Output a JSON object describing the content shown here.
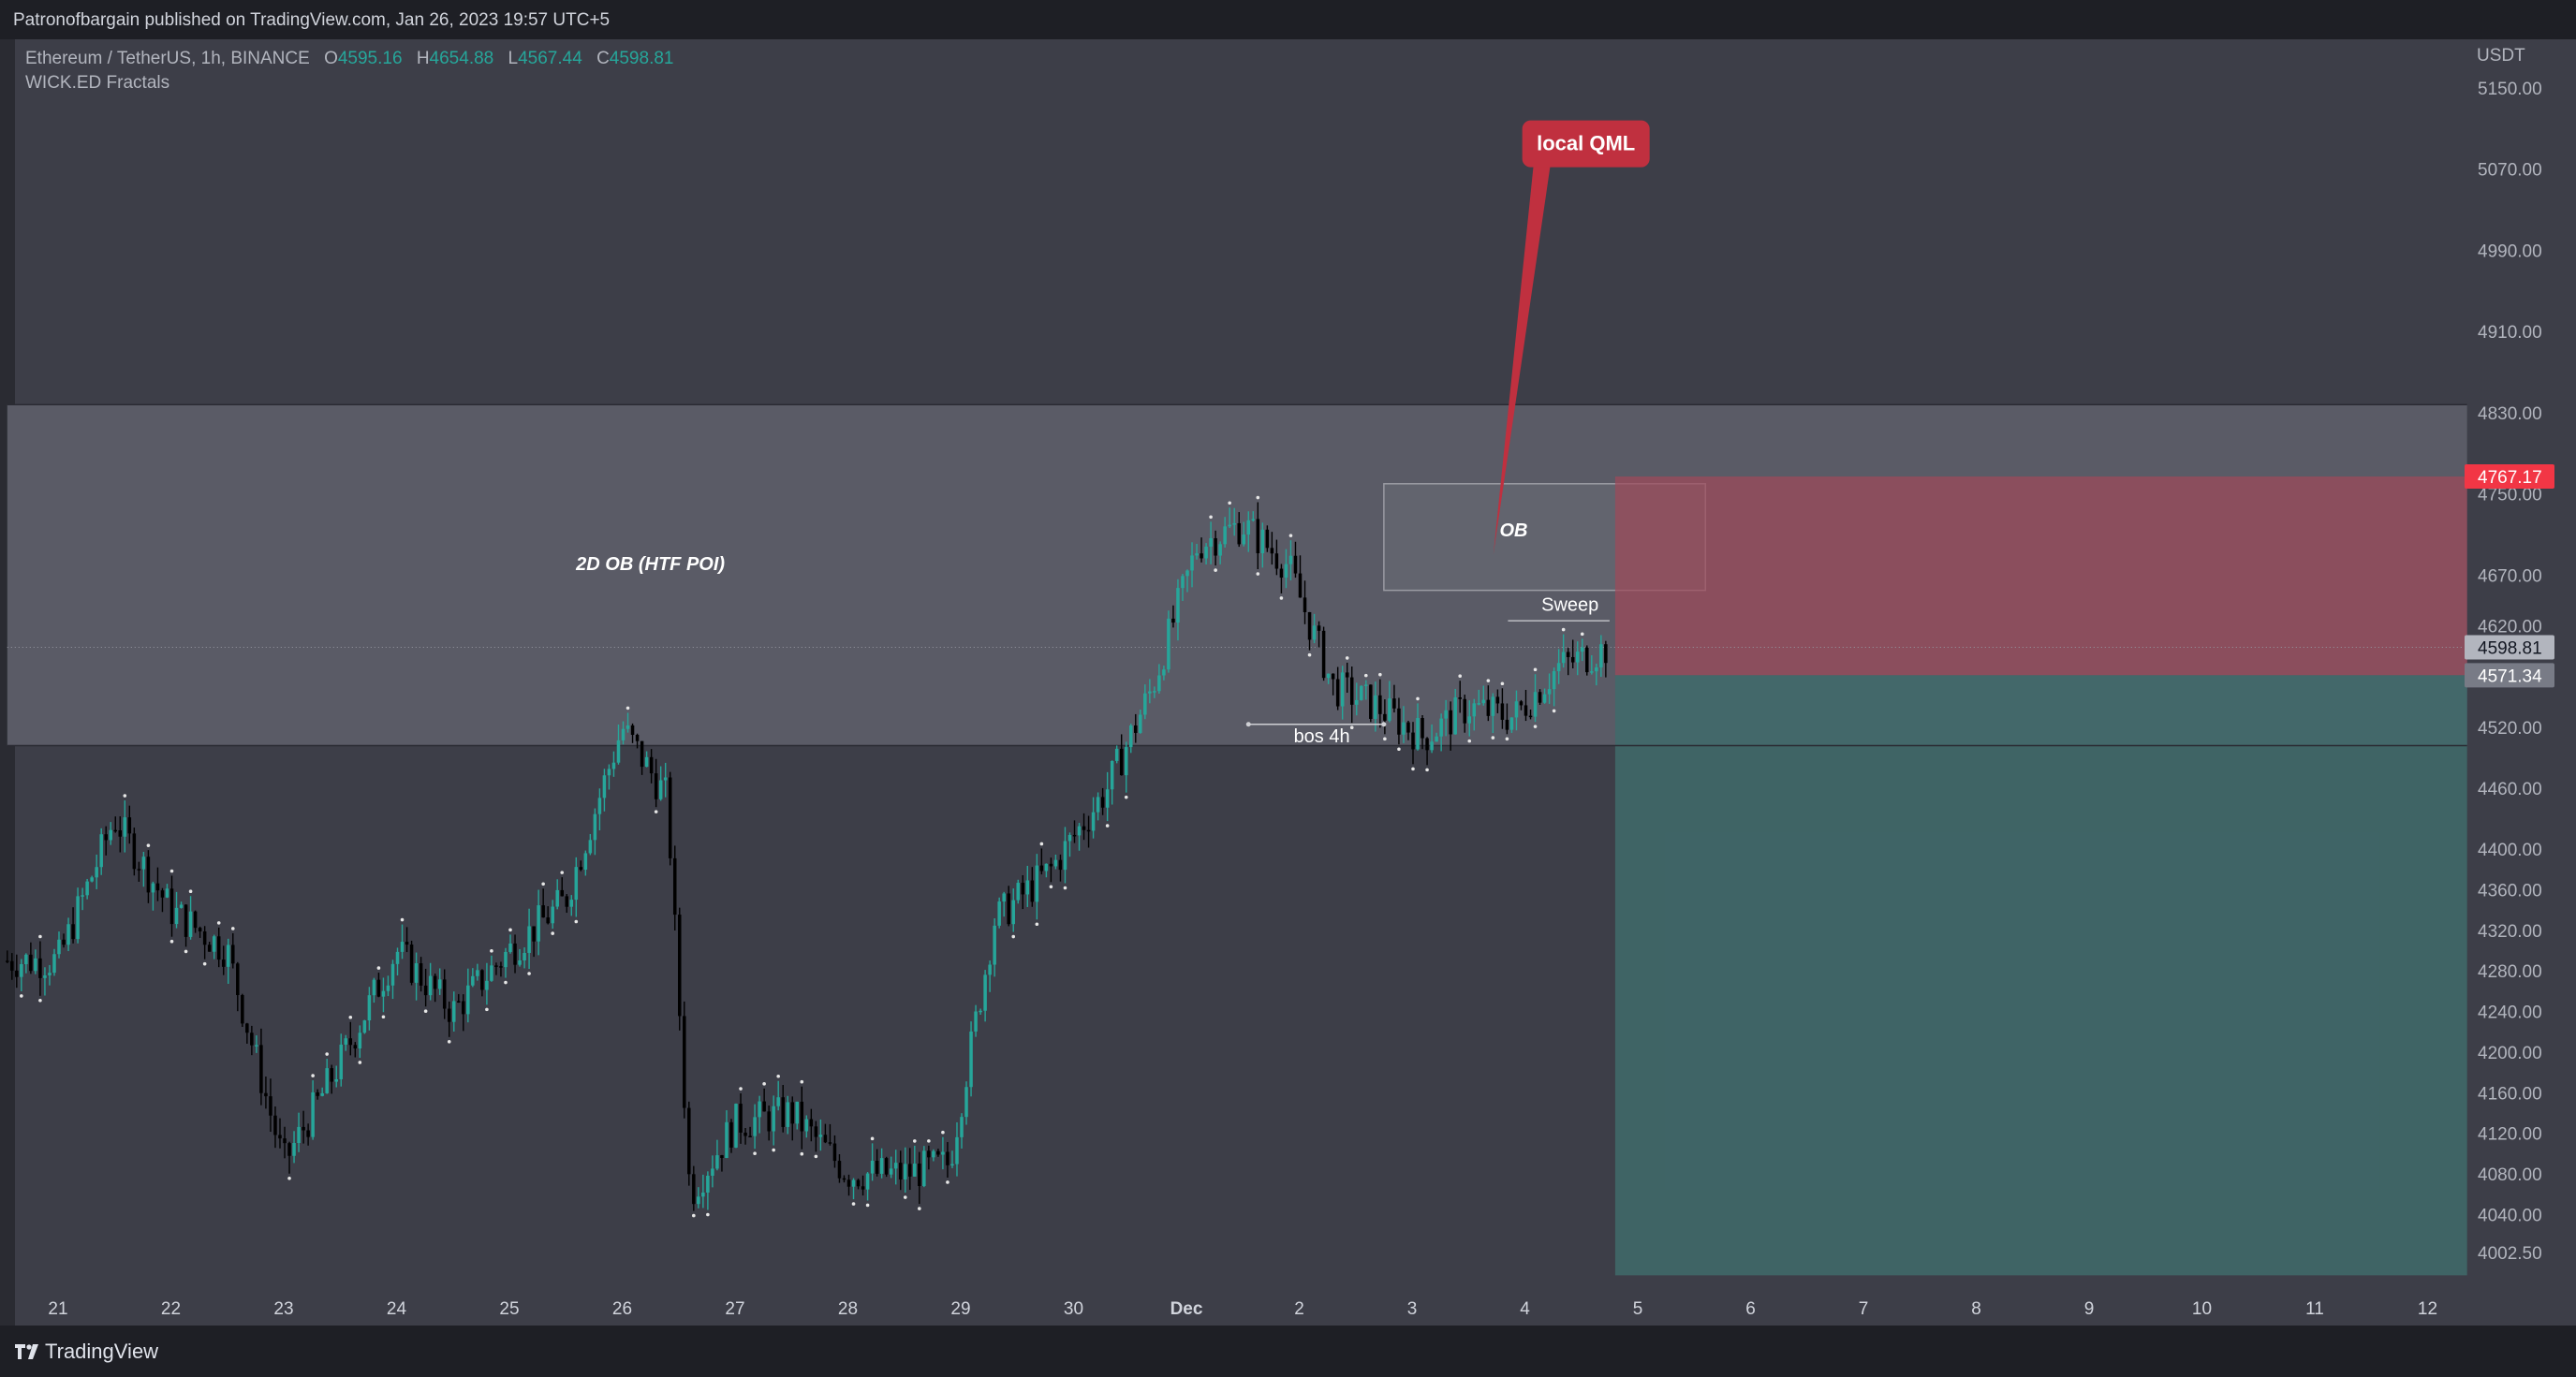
{
  "publisher": "Patronofbargain published on TradingView.com, Jan 26, 2023 19:57 UTC+5",
  "brand": "TradingView",
  "symbol": {
    "name": "Ethereum / TetherUS, 1h, BINANCE",
    "open_label": "O",
    "open": "4595.16",
    "high_label": "H",
    "high": "4654.88",
    "low_label": "L",
    "low": "4567.44",
    "close_label": "C",
    "close": "4598.81"
  },
  "indicator": "WICK.ED Fractals",
  "colors": {
    "up": "#26a69a",
    "down": "#000000",
    "background": "#3d3e48",
    "stop_zone": "#9e4a5a",
    "target_zone": "#3f6b6b",
    "label_red": "#c0303f"
  },
  "chart_data": {
    "type": "candlestick",
    "currency": "USDT",
    "y_ticks": [
      "5150.00",
      "5070.00",
      "4990.00",
      "4910.00",
      "4830.00",
      "4750.00",
      "4670.00",
      "4620.00",
      "4520.00",
      "4460.00",
      "4400.00",
      "4360.00",
      "4320.00",
      "4280.00",
      "4240.00",
      "4200.00",
      "4160.00",
      "4120.00",
      "4080.00",
      "4040.00",
      "4002.50"
    ],
    "x_ticks": [
      "21",
      "22",
      "23",
      "24",
      "25",
      "26",
      "27",
      "28",
      "29",
      "30",
      "Dec",
      "2",
      "3",
      "4",
      "5",
      "6",
      "7",
      "8",
      "9",
      "10",
      "11",
      "12"
    ],
    "ylim": [
      3980,
      5195
    ],
    "price_labels": [
      {
        "value": 4767.17,
        "text": "4767.17",
        "color": "#f23645"
      },
      {
        "value": 4598.81,
        "text": "4598.81",
        "color": "#b2b5be"
      },
      {
        "value": 4571.34,
        "text": "4571.34",
        "color": "#787b86"
      }
    ],
    "zones": [
      {
        "name": "2D OB (HTF POI)",
        "from_day": 20.55,
        "to_day": 42.35,
        "low": 4502,
        "high": 4838
      },
      {
        "name": "OB",
        "from_day": 32.75,
        "to_day": 35.6,
        "low": 4655,
        "high": 4760
      },
      {
        "name": "stop",
        "from_day": 34.8,
        "to_day": 42.35,
        "low": 4571.34,
        "high": 4767.17
      },
      {
        "name": "target",
        "from_day": 34.8,
        "to_day": 42.35,
        "low": 3980,
        "high": 4571.34
      }
    ],
    "annotations": [
      {
        "text": "2D OB (HTF POI)",
        "day": 26.25,
        "price": 4675
      },
      {
        "text": "OB",
        "day": 33.9,
        "price": 4708
      },
      {
        "text": "local QML",
        "day": 34.35,
        "price": 5095
      },
      {
        "text": "Sweep",
        "day": 34.4,
        "price": 4635
      },
      {
        "text": "bos 4h",
        "day": 32.2,
        "price": 4505
      }
    ],
    "sample_closes": [
      {
        "day": 21.0,
        "price": 4290
      },
      {
        "day": 21.5,
        "price": 4430
      },
      {
        "day": 22.0,
        "price": 4340
      },
      {
        "day": 22.5,
        "price": 4300
      },
      {
        "day": 23.0,
        "price": 4090
      },
      {
        "day": 23.5,
        "price": 4190
      },
      {
        "day": 24.0,
        "price": 4300
      },
      {
        "day": 24.5,
        "price": 4240
      },
      {
        "day": 25.0,
        "price": 4300
      },
      {
        "day": 25.5,
        "price": 4350
      },
      {
        "day": 26.0,
        "price": 4520
      },
      {
        "day": 26.4,
        "price": 4450
      },
      {
        "day": 26.6,
        "price": 4060
      },
      {
        "day": 27.0,
        "price": 4130
      },
      {
        "day": 27.5,
        "price": 4140
      },
      {
        "day": 28.0,
        "price": 4080
      },
      {
        "day": 28.5,
        "price": 4080
      },
      {
        "day": 28.9,
        "price": 4090
      },
      {
        "day": 29.3,
        "price": 4330
      },
      {
        "day": 29.8,
        "price": 4380
      },
      {
        "day": 30.3,
        "price": 4460
      },
      {
        "day": 30.7,
        "price": 4560
      },
      {
        "day": 31.1,
        "price": 4700
      },
      {
        "day": 31.5,
        "price": 4720
      },
      {
        "day": 31.9,
        "price": 4680
      },
      {
        "day": 32.3,
        "price": 4560
      },
      {
        "day": 32.7,
        "price": 4540
      },
      {
        "day": 33.1,
        "price": 4510
      },
      {
        "day": 33.5,
        "price": 4540
      },
      {
        "day": 33.9,
        "price": 4530
      },
      {
        "day": 34.3,
        "price": 4580
      },
      {
        "day": 34.75,
        "price": 4598.81
      }
    ]
  }
}
